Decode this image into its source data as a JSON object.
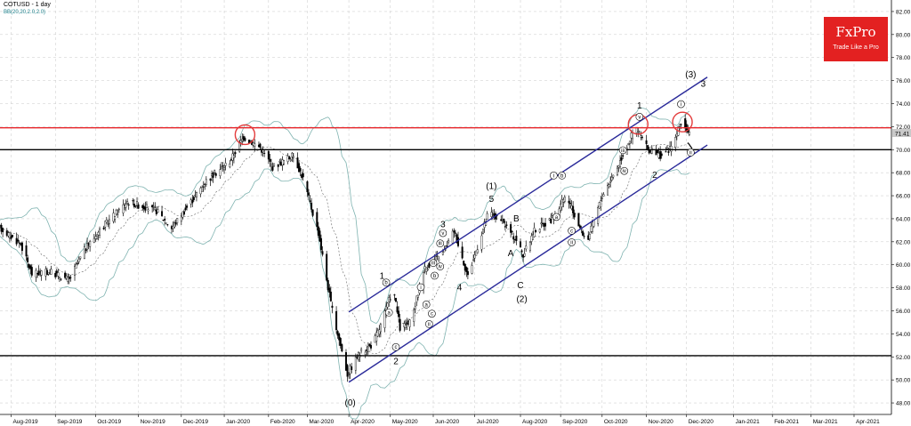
{
  "header": {
    "symbol_timeframe": "COTUSD - 1 day",
    "indicator": "BB(20,20,2.0,2.0)"
  },
  "logo": {
    "name": "FxPro",
    "tagline": "Trade Like a Pro"
  },
  "colors": {
    "resistance": "#e8262b",
    "channel": "#2a2a9a",
    "band": "#7fb3b0",
    "support": "#000000",
    "circle": "#e33b3b"
  },
  "chart_data": {
    "type": "candlestick",
    "title": "COTUSD - 1 day",
    "indicator": "BB(20,20,2.0,2.0)",
    "ylim": [
      47,
      83
    ],
    "y_ticks": [
      48.0,
      50.0,
      52.0,
      54.0,
      56.0,
      58.0,
      60.0,
      62.0,
      64.0,
      66.0,
      68.0,
      70.0,
      72.0,
      74.0,
      76.0,
      78.0,
      80.0,
      82.0
    ],
    "y_tick_labels": [
      "48.00",
      "50.00",
      "52.00",
      "54.00",
      "56.00",
      "58.00",
      "60.00",
      "62.00",
      "64.00",
      "66.00",
      "68.00",
      "70.00",
      "72.00",
      "74.00",
      "76.00",
      "78.00",
      "80.00",
      "82.00"
    ],
    "current_price_label": "71.41",
    "current_price": 71.41,
    "x_range": [
      "2019-07-24",
      "2021-04-28"
    ],
    "x_ticks": [
      {
        "label": "Aug-2019",
        "date": "2019-08-01"
      },
      {
        "label": "Sep-2019",
        "date": "2019-09-02"
      },
      {
        "label": "Oct-2019",
        "date": "2019-10-01"
      },
      {
        "label": "Nov-2019",
        "date": "2019-11-01"
      },
      {
        "label": "Dec-2019",
        "date": "2019-12-02"
      },
      {
        "label": "Jan-2020",
        "date": "2020-01-02"
      },
      {
        "label": "Feb-2020",
        "date": "2020-02-03"
      },
      {
        "label": "Mar-2020",
        "date": "2020-03-02"
      },
      {
        "label": "Apr-2020",
        "date": "2020-04-01"
      },
      {
        "label": "May-2020",
        "date": "2020-05-01"
      },
      {
        "label": "Jun-2020",
        "date": "2020-06-01"
      },
      {
        "label": "Jul-2020",
        "date": "2020-07-01"
      },
      {
        "label": "Aug-2020",
        "date": "2020-08-03"
      },
      {
        "label": "Sep-2020",
        "date": "2020-09-01"
      },
      {
        "label": "Oct-2020",
        "date": "2020-10-01"
      },
      {
        "label": "Nov-2020",
        "date": "2020-11-02"
      },
      {
        "label": "Dec-2020",
        "date": "2020-12-01"
      },
      {
        "label": "Jan-2021",
        "date": "2021-01-04"
      },
      {
        "label": "Feb-2021",
        "date": "2021-02-01"
      },
      {
        "label": "Mar-2021",
        "date": "2021-03-01"
      },
      {
        "label": "Apr-2021",
        "date": "2021-04-01"
      }
    ],
    "price_path": [
      [
        "2019-07-24",
        63.2
      ],
      [
        "2019-08-08",
        61.8
      ],
      [
        "2019-08-16",
        59.2
      ],
      [
        "2019-08-29",
        59.4
      ],
      [
        "2019-09-12",
        58.7
      ],
      [
        "2019-09-23",
        61.3
      ],
      [
        "2019-10-04",
        63.0
      ],
      [
        "2019-10-24",
        65.5
      ],
      [
        "2019-11-14",
        64.7
      ],
      [
        "2019-11-25",
        63.2
      ],
      [
        "2019-12-06",
        65.0
      ],
      [
        "2019-12-20",
        67.3
      ],
      [
        "2020-01-06",
        69.0
      ],
      [
        "2020-01-16",
        71.1
      ],
      [
        "2020-01-28",
        70.2
      ],
      [
        "2020-02-06",
        68.5
      ],
      [
        "2020-02-21",
        69.5
      ],
      [
        "2020-02-28",
        67.5
      ],
      [
        "2020-03-10",
        62.8
      ],
      [
        "2020-03-20",
        56.0
      ],
      [
        "2020-03-31",
        50.5
      ],
      [
        "2020-04-08",
        52.2
      ],
      [
        "2020-04-18",
        53.1
      ],
      [
        "2020-04-24",
        54.7
      ],
      [
        "2020-05-03",
        58.0
      ],
      [
        "2020-05-08",
        54.5
      ],
      [
        "2020-05-16",
        55.0
      ],
      [
        "2020-05-25",
        59.6
      ],
      [
        "2020-06-08",
        61.0
      ],
      [
        "2020-06-16",
        63.0
      ],
      [
        "2020-06-26",
        59.0
      ],
      [
        "2020-07-11",
        64.6
      ],
      [
        "2020-07-22",
        63.6
      ],
      [
        "2020-08-01",
        62.0
      ],
      [
        "2020-08-05",
        60.8
      ],
      [
        "2020-08-13",
        63.0
      ],
      [
        "2020-08-26",
        64.0
      ],
      [
        "2020-09-05",
        66.0
      ],
      [
        "2020-09-12",
        64.0
      ],
      [
        "2020-09-20",
        62.0
      ],
      [
        "2020-10-01",
        66.0
      ],
      [
        "2020-10-12",
        68.5
      ],
      [
        "2020-10-25",
        72.0
      ],
      [
        "2020-11-03",
        70.0
      ],
      [
        "2020-11-12",
        69.5
      ],
      [
        "2020-11-20",
        70.2
      ],
      [
        "2020-11-24",
        71.4
      ],
      [
        "2020-11-27",
        72.4
      ],
      [
        "2020-12-03",
        71.41
      ]
    ],
    "lines": [
      {
        "name": "resistance",
        "y": 71.9
      },
      {
        "name": "support-upper",
        "y": 70.0
      },
      {
        "name": "support-lower",
        "y": 52.1
      }
    ],
    "channel": [
      {
        "from": [
          "2020-04-01",
          55.9
        ],
        "to": [
          "2020-12-16",
          76.3
        ]
      },
      {
        "from": [
          "2020-04-01",
          49.8
        ],
        "to": [
          "2020-12-16",
          70.4
        ]
      }
    ],
    "highlight_circles": [
      {
        "date": "2020-01-17",
        "y": 71.3
      },
      {
        "date": "2020-10-27",
        "y": 72.2
      },
      {
        "date": "2020-11-28",
        "y": 72.4
      }
    ],
    "wave_labels": [
      {
        "text": "(0)",
        "date": "2020-04-02",
        "y": 48.0
      },
      {
        "text": "1",
        "date": "2020-04-25",
        "y": 59.0
      },
      {
        "text": "b",
        "date": "2020-04-28",
        "y": 58.3,
        "circled": true
      },
      {
        "text": "a",
        "date": "2020-04-30",
        "y": 55.7,
        "circled": true
      },
      {
        "text": "c",
        "date": "2020-05-05",
        "y": 52.7,
        "circled": true
      },
      {
        "text": "2",
        "date": "2020-05-05",
        "y": 51.6
      },
      {
        "text": "iii",
        "date": "2020-06-01",
        "y": 60.0,
        "circled": true
      },
      {
        "text": "i",
        "date": "2020-05-23",
        "y": 57.9,
        "circled": true
      },
      {
        "text": "a",
        "date": "2020-05-27",
        "y": 56.4,
        "circled": true
      },
      {
        "text": "c",
        "date": "2020-05-31",
        "y": 55.6,
        "circled": true
      },
      {
        "text": "ii",
        "date": "2020-05-29",
        "y": 54.7,
        "circled": true
      },
      {
        "text": "b",
        "date": "2020-06-02",
        "y": 58.9,
        "circled": true
      },
      {
        "text": "v",
        "date": "2020-06-08",
        "y": 62.6,
        "circled": true
      },
      {
        "text": "iii",
        "date": "2020-06-06",
        "y": 61.7,
        "circled": true
      },
      {
        "text": "iv",
        "date": "2020-06-06",
        "y": 59.7,
        "circled": true
      },
      {
        "text": "3",
        "date": "2020-06-08",
        "y": 63.5
      },
      {
        "text": "4",
        "date": "2020-06-20",
        "y": 58.0
      },
      {
        "text": "(1)",
        "date": "2020-07-13",
        "y": 66.8
      },
      {
        "text": "5",
        "date": "2020-07-13",
        "y": 65.7
      },
      {
        "text": "B",
        "date": "2020-07-31",
        "y": 64.0
      },
      {
        "text": "A",
        "date": "2020-07-27",
        "y": 61.0
      },
      {
        "text": "C",
        "date": "2020-08-03",
        "y": 58.2
      },
      {
        "text": "(2)",
        "date": "2020-08-04",
        "y": 57.0
      },
      {
        "text": "i",
        "date": "2020-08-27",
        "y": 67.6,
        "circled": true
      },
      {
        "text": "b",
        "date": "2020-09-02",
        "y": 67.6,
        "circled": true
      },
      {
        "text": "a",
        "date": "2020-08-29",
        "y": 64.0,
        "circled": true
      },
      {
        "text": "c",
        "date": "2020-09-09",
        "y": 62.8,
        "circled": true
      },
      {
        "text": "ii",
        "date": "2020-09-09",
        "y": 61.8,
        "circled": true
      },
      {
        "text": "iii",
        "date": "2020-10-16",
        "y": 69.8,
        "circled": true
      },
      {
        "text": "iv",
        "date": "2020-10-17",
        "y": 68.0,
        "circled": true
      },
      {
        "text": "1",
        "date": "2020-10-28",
        "y": 73.8
      },
      {
        "text": "v",
        "date": "2020-10-28",
        "y": 72.7,
        "circled": true
      },
      {
        "text": "2",
        "date": "2020-11-08",
        "y": 67.8
      },
      {
        "text": "i",
        "date": "2020-11-27",
        "y": 73.8,
        "circled": true
      },
      {
        "text": "ii",
        "date": "2020-12-04",
        "y": 69.6,
        "circled": true
      },
      {
        "text": "(3)",
        "date": "2020-12-04",
        "y": 76.5
      },
      {
        "text": "3",
        "date": "2020-12-13",
        "y": 75.7
      }
    ],
    "arrow": {
      "from": [
        "2020-12-02",
        70.6
      ],
      "to": [
        "2020-12-05",
        70.1
      ]
    }
  }
}
